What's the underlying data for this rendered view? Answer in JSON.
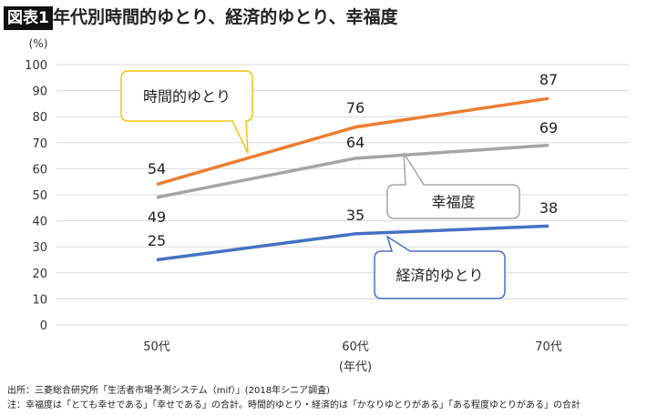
{
  "header": {
    "badge": "図表1",
    "title": "年代別時間的ゆとり、経済的ゆとり、幸福度"
  },
  "chart_data": {
    "type": "line",
    "categories": [
      "50代",
      "60代",
      "70代"
    ],
    "series": [
      {
        "name": "時間的ゆとり",
        "values": [
          54,
          76,
          87
        ],
        "color": "#ED7D31"
      },
      {
        "name": "幸福度",
        "values": [
          49,
          64,
          69
        ],
        "color": "#A5A5A5"
      },
      {
        "name": "経済的ゆとり",
        "values": [
          25,
          35,
          38
        ],
        "color": "#4472C4"
      }
    ],
    "yticks": [
      "0",
      "10",
      "20",
      "30",
      "40",
      "50",
      "60",
      "70",
      "80",
      "90",
      "100"
    ],
    "ylim": [
      0,
      100
    ],
    "yunit": "(%)",
    "xlabel": "(年代)",
    "grid": true,
    "callout_colors": {
      "時間的ゆとり": "#F2C40F",
      "幸福度": "#A5A5A5",
      "経済的ゆとり": "#4472C4"
    }
  },
  "footer": {
    "source": "出所：三菱総合研究所「生活者市場予測システム（mif）」(2018年シニア調査)",
    "note": "注：幸福度は「とても幸せである」「幸せである」の合計。時間的ゆとり・経済的は「かなりゆとりがある」「ある程度ゆとりがある」の合計"
  }
}
